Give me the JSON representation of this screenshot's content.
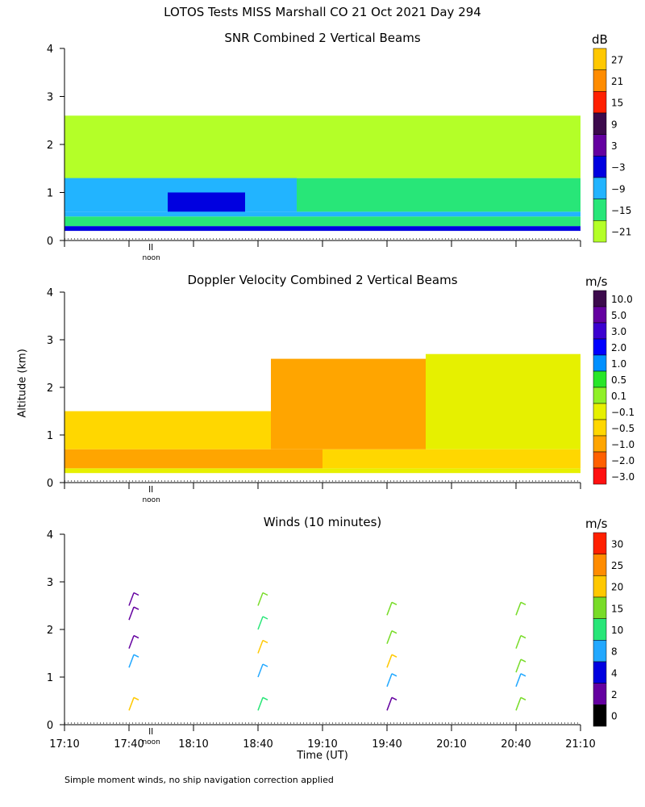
{
  "figure_title": "LOTOS Tests MISS Marshall CO  21 Oct 2021 Day 294",
  "y_axis_label": "Altitude (km)",
  "x_axis_label": "Time (UT)",
  "footnote": "Simple moment winds, no ship navigation correction applied",
  "noon_label": "noon",
  "chart_data": [
    {
      "type": "heatmap",
      "title": "SNR Combined 2 Vertical Beams",
      "unit": "dB",
      "ylim": [
        0,
        4
      ],
      "y_ticks": [
        "0",
        "1",
        "2",
        "3",
        "4"
      ],
      "xlim": [
        "17:10",
        "21:10"
      ],
      "colorbar_labels": [
        "27",
        "21",
        "15",
        "9",
        "3",
        "−3",
        "−9",
        "−15",
        "−21"
      ],
      "colorbar_colors": [
        "#ffc800",
        "#ff8c00",
        "#ff2000",
        "#3c0a4c",
        "#6400a0",
        "#0000e0",
        "#22b4ff",
        "#28e678",
        "#b4ff28"
      ],
      "regions": [
        {
          "t0": 0.0,
          "t1": 1.0,
          "z0": 0.2,
          "z1": 0.3,
          "level": "−3"
        },
        {
          "t0": 0.0,
          "t1": 1.0,
          "z0": 0.3,
          "z1": 0.5,
          "level": "−15"
        },
        {
          "t0": 0.0,
          "t1": 1.0,
          "z0": 0.5,
          "z1": 0.6,
          "level": "−9"
        },
        {
          "t0": 0.0,
          "t1": 0.45,
          "z0": 0.6,
          "z1": 1.5,
          "level": "−9"
        },
        {
          "t0": 0.45,
          "t1": 1.0,
          "z0": 0.6,
          "z1": 1.3,
          "level": "−15"
        },
        {
          "t0": 0.2,
          "t1": 0.35,
          "z0": 0.6,
          "z1": 1.0,
          "level": "−3"
        },
        {
          "t0": 0.0,
          "t1": 1.0,
          "z0": 1.3,
          "z1": 2.6,
          "level": "−21"
        }
      ]
    },
    {
      "type": "heatmap",
      "title": "Doppler Velocity Combined 2 Vertical Beams",
      "unit": "m/s",
      "ylim": [
        0,
        4
      ],
      "y_ticks": [
        "0",
        "1",
        "2",
        "3",
        "4"
      ],
      "xlim": [
        "17:10",
        "21:10"
      ],
      "colorbar_labels": [
        "10.0",
        "5.0",
        "3.0",
        "2.0",
        "1.0",
        "0.5",
        "0.1",
        "−0.1",
        "−0.5",
        "−1.0",
        "−2.0",
        "−3.0"
      ],
      "colorbar_colors": [
        "#3c0a4c",
        "#6400a0",
        "#3c00d0",
        "#0000ff",
        "#0090ff",
        "#28e628",
        "#90f028",
        "#e6f000",
        "#ffd700",
        "#ffa500",
        "#ff6000",
        "#ff1010"
      ],
      "regions": [
        {
          "t0": 0.0,
          "t1": 1.0,
          "z0": 0.2,
          "z1": 0.3,
          "level": "−0.1"
        },
        {
          "t0": 0.0,
          "t1": 0.5,
          "z0": 0.3,
          "z1": 0.7,
          "level": "−1.0"
        },
        {
          "t0": 0.5,
          "t1": 1.0,
          "z0": 0.3,
          "z1": 0.7,
          "level": "−0.5"
        },
        {
          "t0": 0.0,
          "t1": 0.4,
          "z0": 0.7,
          "z1": 1.5,
          "level": "−0.5"
        },
        {
          "t0": 0.4,
          "t1": 0.7,
          "z0": 0.7,
          "z1": 2.6,
          "level": "−1.0"
        },
        {
          "t0": 0.7,
          "t1": 1.0,
          "z0": 0.7,
          "z1": 2.7,
          "level": "−0.1"
        }
      ]
    },
    {
      "type": "scatter",
      "title": "Winds (10 minutes)",
      "unit": "m/s",
      "ylim": [
        0,
        4
      ],
      "y_ticks": [
        "0",
        "1",
        "2",
        "3",
        "4"
      ],
      "x_ticks": [
        "17:10",
        "17:40",
        "18:10",
        "18:40",
        "19:10",
        "19:40",
        "20:10",
        "20:40",
        "21:10"
      ],
      "colorbar_labels": [
        "30",
        "25",
        "20",
        "15",
        "10",
        "8",
        "4",
        "2",
        "0"
      ],
      "colorbar_colors": [
        "#ff2000",
        "#ff8c00",
        "#ffc800",
        "#78dc28",
        "#28e678",
        "#22a8ff",
        "#0000e0",
        "#6400a0",
        "#000000"
      ],
      "profiles": [
        {
          "time_frac": 0.125,
          "z": [
            0.3,
            1.2,
            1.6,
            2.2,
            2.5
          ],
          "speed": [
            24,
            8,
            2,
            2,
            2
          ]
        },
        {
          "time_frac": 0.375,
          "z": [
            0.3,
            1.0,
            1.5,
            2.0,
            2.5
          ],
          "speed": [
            12,
            8,
            20,
            10,
            18
          ]
        },
        {
          "time_frac": 0.625,
          "z": [
            0.3,
            0.8,
            1.2,
            1.7,
            2.3
          ],
          "speed": [
            3,
            8,
            20,
            18,
            18
          ]
        },
        {
          "time_frac": 0.875,
          "z": [
            0.3,
            0.8,
            1.1,
            1.6,
            2.3
          ],
          "speed": [
            18,
            8,
            18,
            18,
            18
          ]
        }
      ]
    }
  ]
}
